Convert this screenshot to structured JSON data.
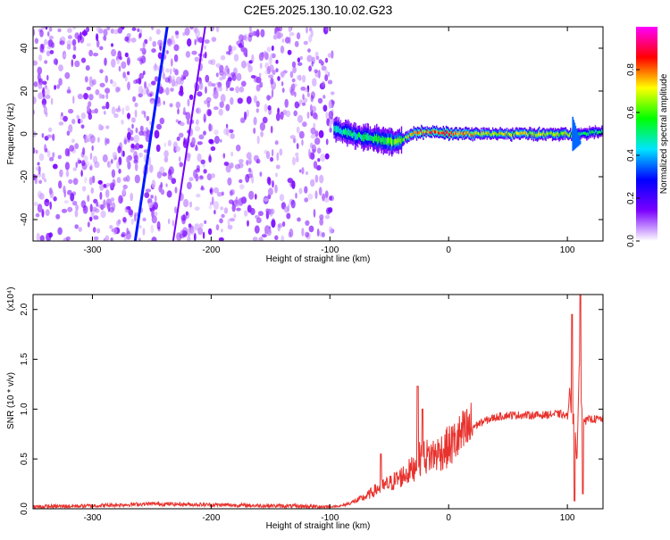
{
  "chart_data": [
    {
      "type": "heatmap",
      "title": "C2E5.2025.130.10.02.G23",
      "xlabel": "Height of straight line (km)",
      "ylabel": "Frequency (Hz)",
      "xlim": [
        -350,
        130
      ],
      "ylim": [
        -50,
        50
      ],
      "x_ticks": [
        -300,
        -200,
        -100,
        0,
        100
      ],
      "y_ticks": [
        -40,
        -20,
        0,
        20,
        40
      ],
      "colorbar": {
        "label": "Normalized spectral amplitude",
        "range": [
          0.0,
          1.0
        ],
        "ticks": [
          "0.0",
          "0.2",
          "0.4",
          "0.6",
          "0.8"
        ],
        "colormap": [
          "#ffffff",
          "#7a00ff",
          "#0000ff",
          "#00e5ff",
          "#00ff00",
          "#ffff00",
          "#ff0000",
          "#ff00ff"
        ]
      },
      "features": {
        "noise_region_x": [
          -350,
          -97
        ],
        "noise_amplitude_typical": 0.12,
        "diagonal_traces": [
          {
            "x": [
              -264,
              -237
            ],
            "y": [
              -50,
              50
            ],
            "amplitude": 0.3
          },
          {
            "x": [
              -232,
              -205
            ],
            "y": [
              -50,
              50
            ],
            "amplitude": 0.15
          }
        ],
        "main_signal": {
          "x": [
            -97,
            -75,
            -55,
            -45,
            -38,
            -30,
            -20,
            -10,
            0,
            20,
            60,
            90,
            100,
            105,
            110,
            130
          ],
          "y": [
            2,
            -1,
            -3,
            -4,
            -2,
            0,
            1,
            1,
            0,
            0,
            0,
            0,
            0,
            -1,
            0,
            1
          ],
          "amplitude": [
            0.45,
            0.5,
            0.55,
            0.6,
            0.6,
            0.75,
            0.8,
            0.8,
            0.85,
            0.7,
            0.7,
            0.65,
            0.7,
            0.55,
            0.5,
            0.5
          ]
        },
        "spike_x": 104
      }
    },
    {
      "type": "line",
      "xlabel": "Height of straight line (km)",
      "ylabel": "SNR (10 * v/v)",
      "y_scale_label": "(x10⁴)",
      "xlim": [
        -350,
        130
      ],
      "ylim": [
        0,
        2.15
      ],
      "x_ticks": [
        -300,
        -200,
        -100,
        0,
        100
      ],
      "y_ticks": [
        "0.0",
        "0.5",
        "1.0",
        "1.5",
        "2.0"
      ],
      "line_color": "#e8322d",
      "series": [
        {
          "x": [
            -350,
            -300,
            -250,
            -200,
            -150,
            -100,
            -90,
            -80,
            -70,
            -60,
            -50,
            -40,
            -30,
            -25,
            -20,
            -10,
            0,
            10,
            20,
            30,
            40,
            50,
            60,
            70,
            80,
            90,
            95,
            100,
            102,
            104,
            106,
            108,
            110,
            112,
            115,
            120,
            130
          ],
          "y": [
            0.02,
            0.03,
            0.05,
            0.04,
            0.03,
            0.02,
            0.03,
            0.07,
            0.12,
            0.2,
            0.25,
            0.32,
            0.4,
            0.5,
            0.52,
            0.55,
            0.62,
            0.72,
            0.82,
            0.88,
            0.92,
            0.94,
            0.94,
            0.94,
            0.94,
            0.95,
            0.95,
            0.92,
            1.2,
            0.8,
            1.0,
            0.4,
            1.5,
            1.0,
            0.88,
            0.9,
            0.9
          ]
        }
      ],
      "spikes": [
        {
          "x": -57,
          "y": 0.55
        },
        {
          "x": -26,
          "y": 1.23
        },
        {
          "x": -22,
          "y": 1.0
        },
        {
          "x": 104,
          "y": 1.95
        },
        {
          "x": 106,
          "y": 0.08
        },
        {
          "x": 111,
          "y": 2.15
        },
        {
          "x": 113,
          "y": 0.15
        }
      ]
    }
  ]
}
